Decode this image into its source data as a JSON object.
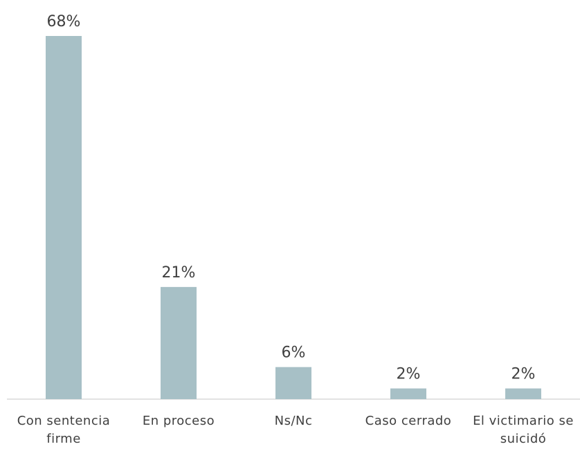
{
  "chart_data": {
    "type": "bar",
    "categories": [
      "Con sentencia firme",
      "En proceso",
      "Ns/Nc",
      "Caso cerrado",
      "El victimario se suicidó"
    ],
    "values": [
      68,
      21,
      6,
      2,
      2
    ],
    "value_labels": [
      "68%",
      "21%",
      "6%",
      "2%",
      "2%"
    ],
    "color": "#a7c0c6"
  }
}
